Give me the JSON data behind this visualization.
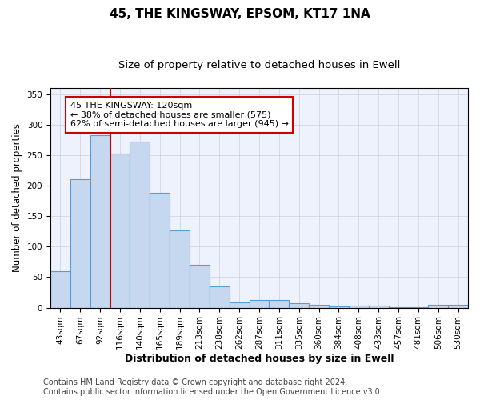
{
  "title": "45, THE KINGSWAY, EPSOM, KT17 1NA",
  "subtitle": "Size of property relative to detached houses in Ewell",
  "xlabel": "Distribution of detached houses by size in Ewell",
  "ylabel": "Number of detached properties",
  "categories": [
    "43sqm",
    "67sqm",
    "92sqm",
    "116sqm",
    "140sqm",
    "165sqm",
    "189sqm",
    "213sqm",
    "238sqm",
    "262sqm",
    "287sqm",
    "311sqm",
    "335sqm",
    "360sqm",
    "384sqm",
    "408sqm",
    "433sqm",
    "457sqm",
    "481sqm",
    "506sqm",
    "530sqm"
  ],
  "values": [
    60,
    210,
    283,
    253,
    272,
    188,
    126,
    70,
    35,
    9,
    12,
    13,
    7,
    5,
    2,
    3,
    4,
    1,
    1,
    5,
    5
  ],
  "bar_color": "#c5d8f0",
  "bar_edge_color": "#5b9bd5",
  "red_line_index": 2.5,
  "annotation_text": "45 THE KINGSWAY: 120sqm\n← 38% of detached houses are smaller (575)\n62% of semi-detached houses are larger (945) →",
  "annotation_box_color": "#ffffff",
  "annotation_box_edge_color": "#cc0000",
  "red_line_color": "#cc0000",
  "ylim": [
    0,
    360
  ],
  "yticks": [
    0,
    50,
    100,
    150,
    200,
    250,
    300,
    350
  ],
  "footer_line1": "Contains HM Land Registry data © Crown copyright and database right 2024.",
  "footer_line2": "Contains public sector information licensed under the Open Government Licence v3.0.",
  "bg_color": "#edf2fc",
  "grid_color": "#c8d0e0",
  "title_fontsize": 11,
  "subtitle_fontsize": 9.5,
  "xlabel_fontsize": 9,
  "ylabel_fontsize": 8.5,
  "tick_fontsize": 7.5,
  "annotation_fontsize": 8,
  "footer_fontsize": 7
}
